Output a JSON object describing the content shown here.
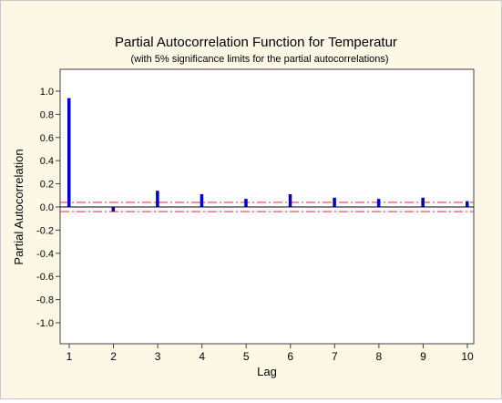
{
  "chart_data": {
    "type": "bar",
    "title": "Partial Autocorrelation Function for Temperatur",
    "subtitle": "(with 5% significance limits for the partial autocorrelations)",
    "xlabel": "Lag",
    "ylabel": "Partial Autocorrelation",
    "categories": [
      1,
      2,
      3,
      4,
      5,
      6,
      7,
      8,
      9,
      10
    ],
    "values": [
      0.94,
      -0.04,
      0.14,
      0.11,
      0.07,
      0.11,
      0.08,
      0.07,
      0.08,
      0.05
    ],
    "significance_limits": [
      0.04,
      -0.04
    ],
    "ylim": [
      -1.1,
      1.1
    ],
    "yticks": [
      "1.0",
      "0.8",
      "0.6",
      "0.4",
      "0.2",
      "0.0",
      "-0.2",
      "-0.4",
      "-0.6",
      "-0.8",
      "-1.0"
    ],
    "xticks": [
      "1",
      "2",
      "3",
      "4",
      "5",
      "6",
      "7",
      "8",
      "9",
      "10"
    ],
    "grid": false,
    "colors": {
      "bar": "#0000cc",
      "limit_line": "#e0404a",
      "background": "#fdf8e6",
      "plot_area": "#ffffff"
    }
  }
}
